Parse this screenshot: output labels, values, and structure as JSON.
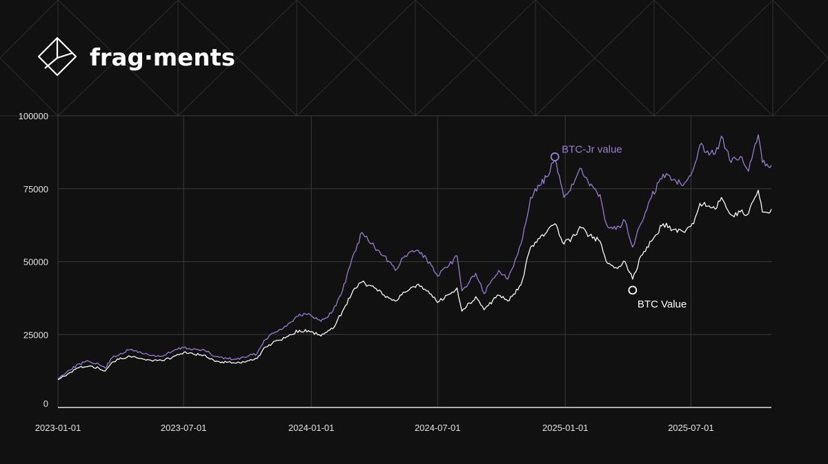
{
  "brand": {
    "name": "frag·ments"
  },
  "colors": {
    "background": "#111111",
    "grid": "#3a3a3a",
    "btc_jr": "#9b7fd4",
    "btc": "#ffffff",
    "axis": "#e6e6e6"
  },
  "chart_data": {
    "type": "line",
    "title": "",
    "xlabel": "",
    "ylabel": "",
    "xlim": [
      "2023-01-01",
      "2025-10-25"
    ],
    "ylim": [
      0,
      100000
    ],
    "grid": true,
    "x_ticks": [
      "2023-01-01",
      "2023-07-01",
      "2024-01-01",
      "2024-07-01",
      "2025-01-01",
      "2025-07-01"
    ],
    "y_ticks": [
      0,
      25000,
      50000,
      75000,
      100000
    ],
    "series": [
      {
        "name": "BTC-Jr value",
        "color": "#9b7fd4",
        "points": [
          [
            "2023-01-01",
            9800
          ],
          [
            "2023-01-15",
            12500
          ],
          [
            "2023-02-01",
            15000
          ],
          [
            "2023-02-15",
            15800
          ],
          [
            "2023-03-01",
            14800
          ],
          [
            "2023-03-10",
            13500
          ],
          [
            "2023-03-20",
            17000
          ],
          [
            "2023-04-01",
            18500
          ],
          [
            "2023-04-15",
            19800
          ],
          [
            "2023-05-01",
            18800
          ],
          [
            "2023-05-15",
            17800
          ],
          [
            "2023-06-01",
            17600
          ],
          [
            "2023-06-20",
            19800
          ],
          [
            "2023-07-01",
            20500
          ],
          [
            "2023-07-15",
            20000
          ],
          [
            "2023-08-01",
            19500
          ],
          [
            "2023-08-15",
            17500
          ],
          [
            "2023-09-01",
            16800
          ],
          [
            "2023-09-15",
            16500
          ],
          [
            "2023-10-01",
            17500
          ],
          [
            "2023-10-15",
            18500
          ],
          [
            "2023-10-25",
            23000
          ],
          [
            "2023-11-01",
            24500
          ],
          [
            "2023-11-15",
            26500
          ],
          [
            "2023-12-01",
            29000
          ],
          [
            "2023-12-15",
            32000
          ],
          [
            "2024-01-01",
            31500
          ],
          [
            "2024-01-15",
            29500
          ],
          [
            "2024-02-01",
            33000
          ],
          [
            "2024-02-15",
            40000
          ],
          [
            "2024-03-01",
            52000
          ],
          [
            "2024-03-14",
            60000
          ],
          [
            "2024-04-01",
            55000
          ],
          [
            "2024-04-15",
            52000
          ],
          [
            "2024-05-01",
            47000
          ],
          [
            "2024-05-15",
            52000
          ],
          [
            "2024-06-01",
            54000
          ],
          [
            "2024-06-15",
            51000
          ],
          [
            "2024-07-01",
            45000
          ],
          [
            "2024-07-15",
            48000
          ],
          [
            "2024-07-29",
            52000
          ],
          [
            "2024-08-05",
            40000
          ],
          [
            "2024-08-25",
            46000
          ],
          [
            "2024-09-06",
            39000
          ],
          [
            "2024-09-27",
            47000
          ],
          [
            "2024-10-10",
            44000
          ],
          [
            "2024-10-29",
            56000
          ],
          [
            "2024-11-12",
            72000
          ],
          [
            "2024-11-25",
            76000
          ],
          [
            "2024-12-05",
            79000
          ],
          [
            "2024-12-17",
            85000
          ],
          [
            "2024-12-30",
            72000
          ],
          [
            "2025-01-15",
            78000
          ],
          [
            "2025-01-22",
            82000
          ],
          [
            "2025-02-05",
            76000
          ],
          [
            "2025-02-20",
            73000
          ],
          [
            "2025-03-01",
            63000
          ],
          [
            "2025-03-15",
            61000
          ],
          [
            "2025-03-28",
            64000
          ],
          [
            "2025-04-08",
            55000
          ],
          [
            "2025-04-20",
            63000
          ],
          [
            "2025-05-05",
            72000
          ],
          [
            "2025-05-22",
            80000
          ],
          [
            "2025-06-05",
            78000
          ],
          [
            "2025-06-22",
            77000
          ],
          [
            "2025-07-05",
            82000
          ],
          [
            "2025-07-14",
            90000
          ],
          [
            "2025-07-25",
            88000
          ],
          [
            "2025-08-05",
            87000
          ],
          [
            "2025-08-14",
            93000
          ],
          [
            "2025-08-28",
            84000
          ],
          [
            "2025-09-10",
            86000
          ],
          [
            "2025-09-22",
            81000
          ],
          [
            "2025-10-06",
            93500
          ],
          [
            "2025-10-12",
            84000
          ],
          [
            "2025-10-25",
            83000
          ]
        ]
      },
      {
        "name": "BTC Value",
        "color": "#ffffff",
        "points": [
          [
            "2023-01-01",
            9500
          ],
          [
            "2023-01-15",
            11500
          ],
          [
            "2023-02-01",
            13800
          ],
          [
            "2023-02-15",
            14200
          ],
          [
            "2023-03-01",
            13500
          ],
          [
            "2023-03-10",
            12500
          ],
          [
            "2023-03-20",
            15500
          ],
          [
            "2023-04-01",
            17000
          ],
          [
            "2023-04-15",
            17500
          ],
          [
            "2023-05-01",
            16800
          ],
          [
            "2023-05-15",
            16200
          ],
          [
            "2023-06-01",
            16000
          ],
          [
            "2023-06-20",
            17800
          ],
          [
            "2023-07-01",
            18800
          ],
          [
            "2023-07-15",
            18300
          ],
          [
            "2023-08-01",
            18000
          ],
          [
            "2023-08-15",
            15800
          ],
          [
            "2023-09-01",
            15500
          ],
          [
            "2023-09-15",
            15200
          ],
          [
            "2023-10-01",
            16000
          ],
          [
            "2023-10-15",
            16800
          ],
          [
            "2023-10-25",
            20500
          ],
          [
            "2023-11-01",
            21500
          ],
          [
            "2023-11-15",
            23000
          ],
          [
            "2023-12-01",
            25000
          ],
          [
            "2023-12-15",
            26500
          ],
          [
            "2024-01-01",
            26000
          ],
          [
            "2024-01-15",
            24500
          ],
          [
            "2024-02-01",
            27000
          ],
          [
            "2024-02-15",
            33000
          ],
          [
            "2024-03-01",
            40000
          ],
          [
            "2024-03-14",
            43000
          ],
          [
            "2024-04-01",
            41000
          ],
          [
            "2024-04-15",
            38500
          ],
          [
            "2024-05-01",
            36500
          ],
          [
            "2024-05-15",
            39500
          ],
          [
            "2024-06-01",
            42000
          ],
          [
            "2024-06-15",
            40000
          ],
          [
            "2024-07-01",
            36000
          ],
          [
            "2024-07-15",
            38500
          ],
          [
            "2024-07-29",
            41000
          ],
          [
            "2024-08-05",
            33000
          ],
          [
            "2024-08-25",
            38000
          ],
          [
            "2024-09-06",
            33500
          ],
          [
            "2024-09-27",
            38500
          ],
          [
            "2024-10-10",
            36500
          ],
          [
            "2024-10-29",
            42000
          ],
          [
            "2024-11-12",
            55000
          ],
          [
            "2024-11-25",
            58000
          ],
          [
            "2024-12-05",
            60000
          ],
          [
            "2024-12-17",
            63000
          ],
          [
            "2024-12-30",
            56000
          ],
          [
            "2025-01-15",
            59000
          ],
          [
            "2025-01-22",
            62000
          ],
          [
            "2025-02-05",
            59000
          ],
          [
            "2025-02-20",
            57000
          ],
          [
            "2025-03-01",
            50000
          ],
          [
            "2025-03-15",
            48000
          ],
          [
            "2025-03-28",
            50000
          ],
          [
            "2025-04-08",
            44000
          ],
          [
            "2025-04-20",
            52000
          ],
          [
            "2025-05-05",
            57000
          ],
          [
            "2025-05-22",
            63000
          ],
          [
            "2025-06-05",
            61000
          ],
          [
            "2025-06-22",
            60000
          ],
          [
            "2025-07-05",
            63000
          ],
          [
            "2025-07-14",
            70000
          ],
          [
            "2025-07-25",
            69000
          ],
          [
            "2025-08-05",
            68000
          ],
          [
            "2025-08-14",
            72000
          ],
          [
            "2025-08-28",
            66000
          ],
          [
            "2025-09-10",
            67000
          ],
          [
            "2025-09-22",
            66500
          ],
          [
            "2025-10-06",
            74500
          ],
          [
            "2025-10-12",
            67000
          ],
          [
            "2025-10-25",
            68000
          ]
        ]
      }
    ],
    "annotations": [
      {
        "text": "BTC-Jr value",
        "series": "BTC-Jr value",
        "x": "2024-12-17",
        "y": 85000
      },
      {
        "text": "BTC Value",
        "series": "BTC Value",
        "x": "2025-04-08",
        "y": 44000
      }
    ]
  }
}
